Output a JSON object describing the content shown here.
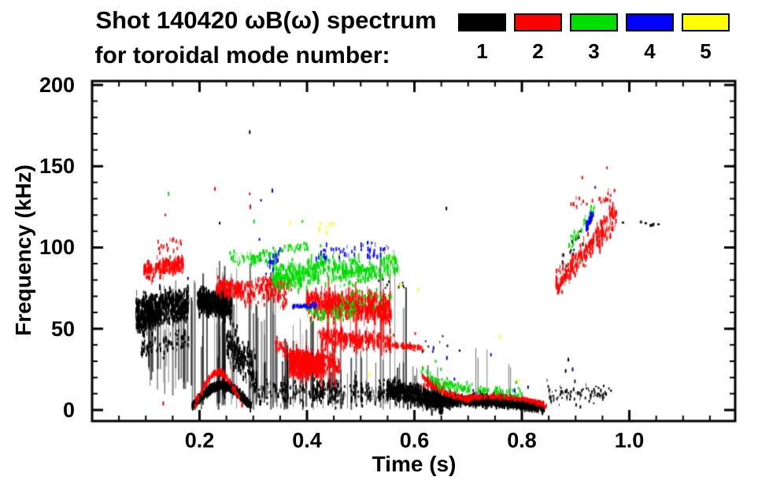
{
  "title_line1": "Shot 140420 ωB(ω) spectrum",
  "title_line2": "for toroidal mode number:",
  "legend": {
    "items": [
      {
        "label": "1",
        "color": "#000000"
      },
      {
        "label": "2",
        "color": "#ff0000"
      },
      {
        "label": "3",
        "color": "#00dd00"
      },
      {
        "label": "4",
        "color": "#0000ff"
      },
      {
        "label": "5",
        "color": "#ffff00"
      }
    ]
  },
  "chart_data": {
    "type": "scatter",
    "title": "Shot 140420 ωB(ω) spectrum for toroidal mode number: 1 2 3 4 5",
    "xlabel": "Time (s)",
    "ylabel": "Frequency (kHz)",
    "xlim": [
      0.0,
      1.197
    ],
    "ylim": [
      -6.8,
      202.4
    ],
    "x_ticks": [
      {
        "v": 0.2,
        "label": "0.2"
      },
      {
        "v": 0.4,
        "label": "0.4"
      },
      {
        "v": 0.6,
        "label": "0.6"
      },
      {
        "v": 0.8,
        "label": "0.8"
      },
      {
        "v": 1.0,
        "label": "1.0"
      }
    ],
    "y_ticks": [
      {
        "v": 0,
        "label": "0"
      },
      {
        "v": 50,
        "label": "50"
      },
      {
        "v": 100,
        "label": "100"
      },
      {
        "v": 150,
        "label": "150"
      },
      {
        "v": 200,
        "label": "200"
      }
    ],
    "x_minor_step": 0.05,
    "y_minor_step": 10,
    "grid": false,
    "legend_position": "top-right",
    "mode_colors": {
      "1": "#000000",
      "2": "#ff0000",
      "3": "#00dd00",
      "4": "#0000ff",
      "5": "#ffff00"
    },
    "units": {
      "t": "s",
      "f": "kHz"
    },
    "clusters": [
      {
        "mode": 1,
        "t": [
          0.08,
          0.178
        ],
        "f": [
          61,
          66
        ],
        "spread": 11,
        "n": 520,
        "mh": 4,
        "mhv": 5
      },
      {
        "mode": 1,
        "t": [
          0.082,
          0.128
        ],
        "f": [
          52,
          58
        ],
        "spread": 7,
        "n": 140,
        "mh": 4,
        "mhv": 4
      },
      {
        "mode": 1,
        "t": [
          0.09,
          0.18
        ],
        "f": [
          38,
          42
        ],
        "spread": 8,
        "n": 80,
        "mh": 3,
        "mhv": 4
      },
      {
        "mode": 1,
        "t": [
          0.195,
          0.258
        ],
        "f": [
          68,
          63
        ],
        "spread": 8,
        "n": 430,
        "mh": 4,
        "mhv": 5
      },
      {
        "mode": 1,
        "t": [
          0.248,
          0.305
        ],
        "f": [
          42,
          22
        ],
        "spread": 14,
        "n": 160,
        "mh": 4,
        "mhv": 6
      },
      {
        "mode": 1,
        "t": [
          0.185,
          0.295
        ],
        "f": [
          2,
          2
        ],
        "bulge": 13,
        "spread": 2.5,
        "n": 460,
        "mh": 4,
        "mhv": 4
      },
      {
        "mode": 1,
        "t": [
          0.3,
          0.47
        ],
        "f": [
          12,
          10
        ],
        "spread": 9,
        "n": 130,
        "mh": 3,
        "mhv": 5
      },
      {
        "mode": 1,
        "t": [
          0.41,
          0.55
        ],
        "f": [
          12,
          10
        ],
        "spread": 8,
        "n": 160,
        "mh": 3,
        "mhv": 5
      },
      {
        "mode": 1,
        "t": [
          0.548,
          0.655
        ],
        "f": [
          13,
          5
        ],
        "spread": 7,
        "n": 480,
        "mh": 4,
        "mhv": 5
      },
      {
        "mode": 1,
        "t": [
          0.62,
          0.84
        ],
        "f": [
          4,
          1
        ],
        "bulge": 3,
        "spread": 2.8,
        "n": 760,
        "mh": 4,
        "mhv": 4
      },
      {
        "mode": 1,
        "t": [
          0.625,
          0.675
        ],
        "f": [
          7,
          6
        ],
        "spread": 4.5,
        "n": 160,
        "mh": 3,
        "mhv": 4
      },
      {
        "mode": 1,
        "t": [
          0.7,
          0.79
        ],
        "f": [
          7,
          6
        ],
        "spread": 4,
        "n": 160,
        "mh": 3,
        "mhv": 4
      },
      {
        "mode": 1,
        "t": [
          0.845,
          0.965
        ],
        "f": [
          10,
          9
        ],
        "spread": 7,
        "n": 90,
        "mh": 2,
        "mhv": 3
      },
      {
        "mode": 1,
        "t": [
          0.865,
          0.905
        ],
        "f": [
          90,
          103
        ],
        "spread": 7,
        "n": 14,
        "mh": 3,
        "mhv": 3
      },
      {
        "mode": 1,
        "t": [
          0.59,
          0.69
        ],
        "f": [
          40,
          38
        ],
        "spread": 8,
        "n": 10,
        "mh": 2,
        "mhv": 2
      },
      {
        "mode": 1,
        "t": [
          0.53,
          0.585
        ],
        "f": [
          77,
          77
        ],
        "spread": 3,
        "n": 10,
        "mh": 2,
        "mhv": 2
      },
      {
        "mode": 1,
        "t": [
          0.985,
          1.07
        ],
        "f": [
          115,
          114
        ],
        "spread": 1,
        "n": 7,
        "mw": 3,
        "mh": 2,
        "mhv": 2
      },
      {
        "mode": 2,
        "t": [
          0.095,
          0.168
        ],
        "f": [
          85,
          90
        ],
        "spread": 6,
        "n": 170,
        "mh": 4,
        "mhv": 4
      },
      {
        "mode": 2,
        "t": [
          0.12,
          0.168
        ],
        "f": [
          99,
          104
        ],
        "spread": 5,
        "n": 20,
        "mh": 3,
        "mhv": 3
      },
      {
        "mode": 2,
        "t": [
          0.23,
          0.282
        ],
        "f": [
          76,
          73
        ],
        "spread": 5.5,
        "n": 140,
        "mh": 4,
        "mhv": 4
      },
      {
        "mode": 2,
        "t": [
          0.282,
          0.36
        ],
        "f": [
          72,
          70
        ],
        "spread": 8,
        "n": 110,
        "mh": 3,
        "mhv": 5
      },
      {
        "mode": 2,
        "t": [
          0.3,
          0.37
        ],
        "f": [
          79,
          76
        ],
        "spread": 5,
        "n": 70,
        "mh": 3,
        "mhv": 4
      },
      {
        "mode": 2,
        "t": [
          0.19,
          0.278
        ],
        "f": [
          3,
          3
        ],
        "bulge": 20,
        "spread": 2.2,
        "n": 150,
        "mh": 3,
        "mhv": 3
      },
      {
        "mode": 2,
        "t": [
          0.34,
          0.375
        ],
        "f": [
          40,
          33
        ],
        "spread": 5,
        "n": 50,
        "mh": 3,
        "mhv": 4
      },
      {
        "mode": 2,
        "t": [
          0.366,
          0.43
        ],
        "f": [
          29,
          27
        ],
        "spread": 8.5,
        "n": 520,
        "mh": 4,
        "mhv": 5
      },
      {
        "mode": 2,
        "t": [
          0.43,
          0.46
        ],
        "f": [
          30,
          28
        ],
        "spread": 6,
        "n": 60,
        "mh": 3,
        "mhv": 4
      },
      {
        "mode": 2,
        "t": [
          0.398,
          0.555
        ],
        "f": [
          66,
          62
        ],
        "spread": 9,
        "n": 480,
        "mh": 5,
        "mhv": 7
      },
      {
        "mode": 2,
        "t": [
          0.42,
          0.555
        ],
        "f": [
          45,
          42
        ],
        "spread": 7,
        "n": 220,
        "mh": 4,
        "mhv": 6
      },
      {
        "mode": 2,
        "t": [
          0.553,
          0.617
        ],
        "f": [
          40,
          38
        ],
        "spread": 1.8,
        "n": 70,
        "mh": 3,
        "mhv": 2
      },
      {
        "mode": 2,
        "t": [
          0.613,
          0.7
        ],
        "f": [
          21,
          7
        ],
        "ease": "out",
        "spread": 1.8,
        "n": 130,
        "mh": 3,
        "mhv": 2
      },
      {
        "mode": 2,
        "t": [
          0.695,
          0.845
        ],
        "f": [
          7,
          3
        ],
        "bulge": 3,
        "spread": 1.5,
        "n": 240,
        "mh": 3,
        "mhv": 2
      },
      {
        "mode": 2,
        "t": [
          0.615,
          0.655
        ],
        "f": [
          17,
          14
        ],
        "spread": 3.5,
        "n": 35,
        "mh": 3,
        "mhv": 3
      },
      {
        "mode": 2,
        "t": [
          0.862,
          0.975
        ],
        "f": [
          76,
          120
        ],
        "spread": 9,
        "n": 260,
        "mh": 4,
        "mhv": 4
      },
      {
        "mode": 2,
        "t": [
          0.88,
          0.965
        ],
        "f": [
          126,
          131
        ],
        "spread": 4,
        "n": 22,
        "mh": 3,
        "mhv": 3
      },
      {
        "mode": 3,
        "t": [
          0.255,
          0.345
        ],
        "f": [
          93,
          95
        ],
        "spread": 5,
        "n": 90,
        "mh": 3,
        "mhv": 3
      },
      {
        "mode": 3,
        "t": [
          0.335,
          0.42
        ],
        "f": [
          82,
          84
        ],
        "spread": 8,
        "n": 230,
        "mh": 4,
        "mhv": 4
      },
      {
        "mode": 3,
        "t": [
          0.35,
          0.4
        ],
        "f": [
          99,
          101
        ],
        "spread": 3,
        "n": 30,
        "mh": 3,
        "mhv": 3
      },
      {
        "mode": 3,
        "t": [
          0.42,
          0.5
        ],
        "f": [
          88,
          86
        ],
        "spread": 9,
        "n": 160,
        "mh": 4,
        "mhv": 4
      },
      {
        "mode": 3,
        "t": [
          0.4,
          0.49
        ],
        "f": [
          60,
          61
        ],
        "spread": 6,
        "n": 80,
        "mh": 3,
        "mhv": 4
      },
      {
        "mode": 3,
        "t": [
          0.5,
          0.568
        ],
        "f": [
          84,
          90
        ],
        "spread": 7,
        "n": 100,
        "mh": 4,
        "mhv": 4
      },
      {
        "mode": 3,
        "t": [
          0.46,
          0.56
        ],
        "f": [
          68,
          70
        ],
        "spread": 8,
        "n": 45,
        "mh": 3,
        "mhv": 3
      },
      {
        "mode": 3,
        "t": [
          0.61,
          0.7
        ],
        "f": [
          26,
          13
        ],
        "ease": "out",
        "spread": 3,
        "n": 55,
        "mh": 3,
        "mhv": 3
      },
      {
        "mode": 3,
        "t": [
          0.64,
          0.8
        ],
        "f": [
          15,
          10
        ],
        "spread": 3.2,
        "n": 85,
        "mh": 3,
        "mhv": 3
      },
      {
        "mode": 3,
        "t": [
          0.885,
          0.935
        ],
        "f": [
          102,
          122
        ],
        "spread": 6,
        "n": 32,
        "mh": 3,
        "mhv": 4
      },
      {
        "mode": 4,
        "t": [
          0.322,
          0.352
        ],
        "f": [
          87,
          97
        ],
        "spread": 5,
        "n": 22,
        "mh": 3,
        "mhv": 4
      },
      {
        "mode": 4,
        "t": [
          0.372,
          0.418
        ],
        "f": [
          63.5,
          64.5
        ],
        "spread": 1.4,
        "n": 48,
        "mh": 3,
        "mhv": 2
      },
      {
        "mode": 4,
        "t": [
          0.415,
          0.555
        ],
        "f": [
          95,
          99
        ],
        "spread": 5.5,
        "n": 60,
        "mh": 3,
        "mhv": 4
      },
      {
        "mode": 4,
        "t": [
          0.918,
          0.93
        ],
        "f": [
          112,
          120
        ],
        "spread": 4,
        "n": 12,
        "mw": 3,
        "mh": 4,
        "mhv": 4
      },
      {
        "mode": 5,
        "t": [
          0.42,
          0.45
        ],
        "f": [
          110,
          114
        ],
        "spread": 2,
        "n": 8,
        "mh": 3,
        "mhv": 3
      }
    ],
    "streaks": [
      {
        "mode": 1,
        "t": [
          0.1,
          0.185
        ],
        "n": 22,
        "fLow": [
          8,
          28
        ],
        "fHigh": [
          45,
          80
        ]
      },
      {
        "mode": 1,
        "t": [
          0.185,
          0.345
        ],
        "n": 48,
        "fLow": [
          0,
          10
        ],
        "fHigh": [
          28,
          92
        ]
      },
      {
        "mode": 1,
        "t": [
          0.345,
          0.43
        ],
        "n": 22,
        "fLow": [
          0,
          8
        ],
        "fHigh": [
          20,
          60
        ]
      },
      {
        "mode": 1,
        "t": [
          0.43,
          0.545
        ],
        "n": 16,
        "fLow": [
          0,
          6
        ],
        "fHigh": [
          22,
          55
        ]
      },
      {
        "mode": 1,
        "t": [
          0.515,
          0.585
        ],
        "n": 6,
        "fLow": [
          0,
          6
        ],
        "fHigh": [
          55,
          95
        ]
      },
      {
        "mode": 1,
        "t": [
          0.555,
          0.645
        ],
        "n": 10,
        "fLow": [
          0,
          5
        ],
        "fHigh": [
          18,
          30
        ]
      },
      {
        "mode": 1,
        "t": [
          0.71,
          0.78
        ],
        "n": 5,
        "fLow": [
          3,
          8
        ],
        "fHigh": [
          25,
          45
        ]
      },
      {
        "mode": 2,
        "t": [
          0.43,
          0.55
        ],
        "n": 14,
        "fLow": [
          30,
          45
        ],
        "fHigh": [
          62,
          84
        ]
      },
      {
        "mode": 2,
        "t": [
          0.372,
          0.45
        ],
        "n": 10,
        "fLow": [
          12,
          20
        ],
        "fHigh": [
          35,
          48
        ]
      }
    ],
    "points": [
      {
        "mode": 1,
        "pts": [
          [
            0.292,
            171
          ],
          [
            0.236,
            115
          ],
          [
            0.658,
            124
          ],
          [
            0.88,
            24
          ],
          [
            0.885,
            31
          ],
          [
            0.907,
            110
          ],
          [
            0.912,
            102
          ]
        ]
      },
      {
        "mode": 2,
        "pts": [
          [
            0.131,
            4
          ],
          [
            0.135,
            120
          ],
          [
            0.227,
            136
          ],
          [
            0.292,
            133
          ],
          [
            0.293,
            125
          ],
          [
            0.957,
            149
          ],
          [
            0.911,
            143
          ],
          [
            0.971,
            135
          ],
          [
            0.56,
            46
          ],
          [
            0.6,
            47
          ]
        ]
      },
      {
        "mode": 3,
        "pts": [
          [
            0.141,
            133
          ],
          [
            0.3,
            116
          ],
          [
            0.39,
            116
          ],
          [
            0.424,
            101
          ],
          [
            0.788,
            17
          ],
          [
            0.927,
            122
          ],
          [
            0.907,
            92
          ],
          [
            0.89,
            107
          ],
          [
            0.638,
            30
          ],
          [
            0.648,
            25
          ]
        ]
      },
      {
        "mode": 4,
        "pts": [
          [
            0.177,
            81
          ],
          [
            0.31,
            105
          ],
          [
            0.313,
            129
          ],
          [
            0.334,
            135
          ],
          [
            0.935,
            137
          ],
          [
            0.924,
            115
          ],
          [
            0.634,
            38
          ],
          [
            0.659,
            32
          ],
          [
            0.673,
            19
          ],
          [
            0.741,
            34
          ],
          [
            0.785,
            12
          ],
          [
            0.81,
            14
          ],
          [
            0.893,
            25
          ]
        ]
      },
      {
        "mode": 5,
        "pts": [
          [
            0.367,
            115
          ],
          [
            0.424,
            115
          ],
          [
            0.435,
            109
          ],
          [
            0.457,
            96
          ],
          [
            0.555,
            93
          ],
          [
            0.572,
            77
          ],
          [
            0.605,
            74
          ],
          [
            0.515,
            22
          ],
          [
            0.758,
            45
          ],
          [
            0.792,
            18
          ]
        ]
      }
    ]
  }
}
